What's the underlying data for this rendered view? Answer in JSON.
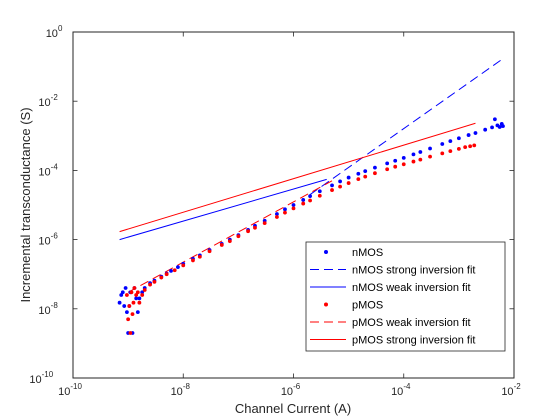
{
  "chart_data": {
    "type": "scatter",
    "title": "",
    "xlabel": "Channel Current (A)",
    "ylabel": "Incremental transconductance (S)",
    "x_scale": "log",
    "y_scale": "log",
    "xlim": [
      1e-10,
      0.01
    ],
    "ylim": [
      1e-10,
      1
    ],
    "x_ticks": [
      {
        "value": 1e-10,
        "base": "10",
        "exp": "-10"
      },
      {
        "value": 1e-08,
        "base": "10",
        "exp": "-8"
      },
      {
        "value": 1e-06,
        "base": "10",
        "exp": "-6"
      },
      {
        "value": 0.0001,
        "base": "10",
        "exp": "-4"
      },
      {
        "value": 0.01,
        "base": "10",
        "exp": "-2"
      }
    ],
    "y_ticks": [
      {
        "value": 1e-10,
        "base": "10",
        "exp": "-10"
      },
      {
        "value": 1e-08,
        "base": "10",
        "exp": "-8"
      },
      {
        "value": 1e-06,
        "base": "10",
        "exp": "-6"
      },
      {
        "value": 0.0001,
        "base": "10",
        "exp": "-4"
      },
      {
        "value": 0.01,
        "base": "10",
        "exp": "-2"
      },
      {
        "value": 1,
        "base": "10",
        "exp": "0"
      }
    ],
    "grid": false,
    "legend_position": "bottom-right",
    "series": [
      {
        "name": "nMOS",
        "kind": "points",
        "color": "#0000ff",
        "points": [
          [
            7e-10,
            1.5e-08
          ],
          [
            7.5e-10,
            2.5e-08
          ],
          [
            8e-10,
            3e-08
          ],
          [
            8.5e-10,
            1.2e-08
          ],
          [
            9e-10,
            4e-08
          ],
          [
            9.5e-10,
            8e-09
          ],
          [
            1e-09,
            2e-09
          ],
          [
            1.05e-09,
            1.2e-08
          ],
          [
            1.1e-09,
            3e-08
          ],
          [
            1.2e-09,
            2e-09
          ],
          [
            1.3e-09,
            4e-08
          ],
          [
            1.4e-09,
            2e-08
          ],
          [
            1.5e-09,
            8e-09
          ],
          [
            1.6e-09,
            2e-08
          ],
          [
            1.8e-09,
            3e-08
          ],
          [
            2e-09,
            4e-08
          ],
          [
            2.5e-09,
            5.5e-08
          ],
          [
            3e-09,
            6.5e-08
          ],
          [
            4e-09,
            8.5e-08
          ],
          [
            5e-09,
            1.05e-07
          ],
          [
            6e-09,
            1.25e-07
          ],
          [
            8e-09,
            1.6e-07
          ],
          [
            1e-08,
            2e-07
          ],
          [
            1.5e-08,
            2.8e-07
          ],
          [
            2e-08,
            3.5e-07
          ],
          [
            3e-08,
            5e-07
          ],
          [
            5e-08,
            7.5e-07
          ],
          [
            7e-08,
            1e-06
          ],
          [
            1e-07,
            1.35e-06
          ],
          [
            1.5e-07,
            1.9e-06
          ],
          [
            2e-07,
            2.5e-06
          ],
          [
            3e-07,
            3.5e-06
          ],
          [
            5e-07,
            5.5e-06
          ],
          [
            7e-07,
            7.5e-06
          ],
          [
            1e-06,
            1e-05
          ],
          [
            1.5e-06,
            1.4e-05
          ],
          [
            2e-06,
            1.8e-05
          ],
          [
            3e-06,
            2.5e-05
          ],
          [
            5e-06,
            3.7e-05
          ],
          [
            7e-06,
            4.8e-05
          ],
          [
            1e-05,
            6.2e-05
          ],
          [
            1.5e-05,
            8e-05
          ],
          [
            2e-05,
            9.5e-05
          ],
          [
            3e-05,
            0.00012
          ],
          [
            5e-05,
            0.00016
          ],
          [
            7e-05,
            0.00019
          ],
          [
            0.0001,
            0.00023
          ],
          [
            0.00015,
            0.00029
          ],
          [
            0.0002,
            0.00034
          ],
          [
            0.0003,
            0.00043
          ],
          [
            0.0005,
            0.00058
          ],
          [
            0.0007,
            0.0007
          ],
          [
            0.001,
            0.00085
          ],
          [
            0.0015,
            0.00105
          ],
          [
            0.002,
            0.0012
          ],
          [
            0.003,
            0.0015
          ],
          [
            0.004,
            0.00175
          ],
          [
            0.0045,
            0.003
          ],
          [
            0.005,
            0.002
          ],
          [
            0.0055,
            0.0018
          ],
          [
            0.006,
            0.0022
          ],
          [
            0.0063,
            0.0019
          ]
        ]
      },
      {
        "name": "nMOS strong inversion fit",
        "kind": "line",
        "dash": "dash",
        "color": "#0000ff",
        "points": [
          [
            2e-06,
            2e-05
          ],
          [
            0.006,
            0.16
          ]
        ]
      },
      {
        "name": "nMOS weak inversion fit",
        "kind": "line",
        "dash": "solid",
        "color": "#0000ff",
        "points": [
          [
            7e-10,
            1e-06
          ],
          [
            4e-06,
            5.5e-05
          ]
        ]
      },
      {
        "name": "pMOS",
        "kind": "points",
        "color": "#ff0000",
        "points": [
          [
            9.5e-10,
            2.5e-08
          ],
          [
            1e-09,
            5e-09
          ],
          [
            1.05e-09,
            1.2e-08
          ],
          [
            1.1e-09,
            2e-09
          ],
          [
            1.15e-09,
            3e-08
          ],
          [
            1.2e-09,
            7e-09
          ],
          [
            1.25e-09,
            1.5e-08
          ],
          [
            1.3e-09,
            4e-08
          ],
          [
            1.4e-09,
            2.5e-08
          ],
          [
            1.5e-09,
            3e-08
          ],
          [
            1.6e-09,
            1.5e-08
          ],
          [
            1.8e-09,
            2.5e-08
          ],
          [
            2e-09,
            3.5e-08
          ],
          [
            2.5e-09,
            5e-08
          ],
          [
            3e-09,
            6e-08
          ],
          [
            4e-09,
            8e-08
          ],
          [
            5e-09,
            1e-07
          ],
          [
            7e-09,
            1.3e-07
          ],
          [
            1e-08,
            1.8e-07
          ],
          [
            1.5e-08,
            2.5e-07
          ],
          [
            2e-08,
            3.2e-07
          ],
          [
            3e-08,
            4.6e-07
          ],
          [
            5e-08,
            7e-07
          ],
          [
            7e-08,
            9e-07
          ],
          [
            1e-07,
            1.25e-06
          ],
          [
            1.5e-07,
            1.75e-06
          ],
          [
            2e-07,
            2.2e-06
          ],
          [
            3e-07,
            3e-06
          ],
          [
            5e-07,
            4.5e-06
          ],
          [
            7e-07,
            6e-06
          ],
          [
            1e-06,
            8e-06
          ],
          [
            1.5e-06,
            1.1e-05
          ],
          [
            2e-06,
            1.35e-05
          ],
          [
            3e-06,
            1.85e-05
          ],
          [
            5e-06,
            2.7e-05
          ],
          [
            7e-06,
            3.4e-05
          ],
          [
            1e-05,
            4.3e-05
          ],
          [
            1.5e-05,
            5.6e-05
          ],
          [
            2e-05,
            6.6e-05
          ],
          [
            3e-05,
            8.3e-05
          ],
          [
            5e-05,
            0.000108
          ],
          [
            7e-05,
            0.000128
          ],
          [
            0.0001,
            0.00015
          ],
          [
            0.00015,
            0.00018
          ],
          [
            0.0002,
            0.000205
          ],
          [
            0.0003,
            0.00025
          ],
          [
            0.0005,
            0.00031
          ],
          [
            0.0007,
            0.00036
          ],
          [
            0.001,
            0.00042
          ],
          [
            0.0013,
            0.00047
          ],
          [
            0.0016,
            0.0005
          ],
          [
            0.0019,
            0.00053
          ]
        ]
      },
      {
        "name": "pMOS weak inversion fit",
        "kind": "line",
        "dash": "dash",
        "color": "#ff0000",
        "points": [
          [
            1e-09,
            3e-08
          ],
          [
            5e-06,
            5e-05
          ]
        ]
      },
      {
        "name": "pMOS strong inversion fit",
        "kind": "line",
        "dash": "solid",
        "color": "#ff0000",
        "points": [
          [
            7e-10,
            1.7e-06
          ],
          [
            0.002,
            0.0023
          ]
        ]
      }
    ]
  }
}
